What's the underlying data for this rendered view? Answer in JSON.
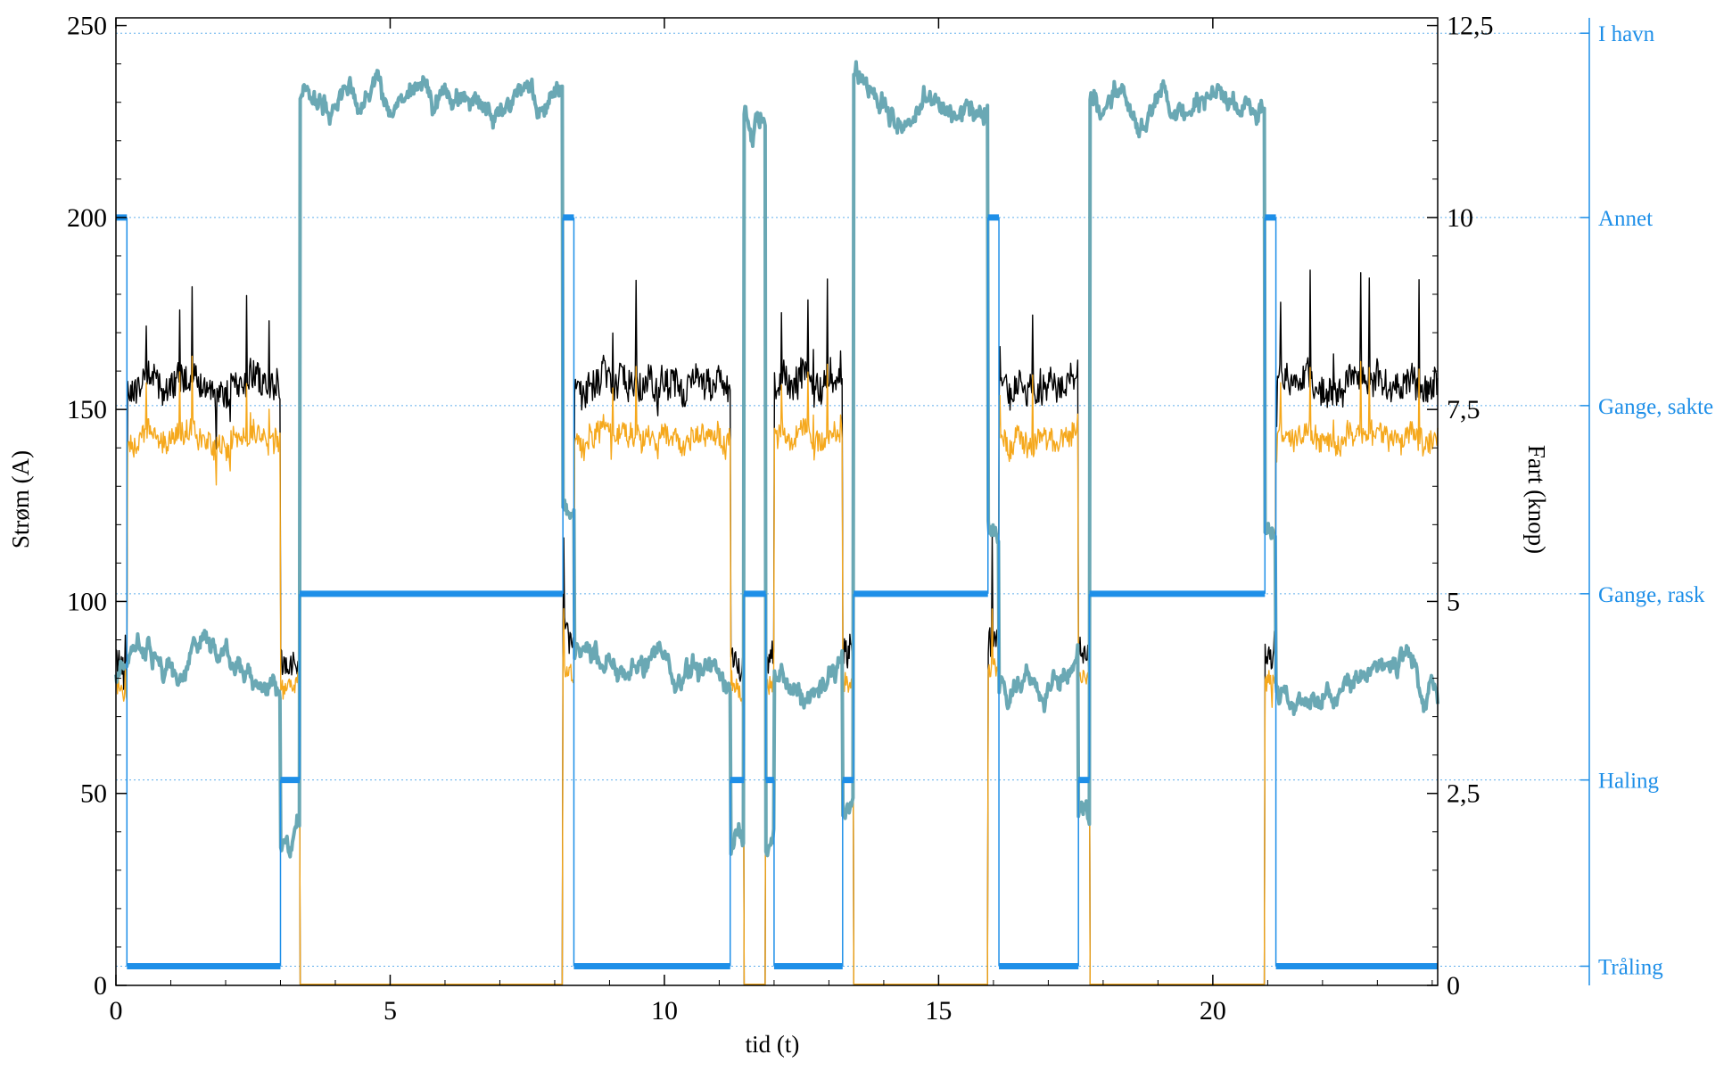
{
  "chart_data": {
    "type": "line",
    "xlabel": "tid (t)",
    "ylabel_left": "Strøm (A)",
    "ylabel_right": "Fart (knop)",
    "xlim": [
      0,
      24.1
    ],
    "ylim_left": [
      0,
      252
    ],
    "ylim_right": [
      0,
      12.6
    ],
    "x_ticks": [
      "0",
      "5",
      "10",
      "15",
      "20"
    ],
    "x_tick_values": [
      0,
      5,
      10,
      15,
      20
    ],
    "y_left_ticks": [
      "0",
      "50",
      "100",
      "150",
      "200",
      "250"
    ],
    "y_left_tick_values": [
      0,
      50,
      100,
      150,
      200,
      250
    ],
    "y_right_ticks": [
      "0",
      "2,5",
      "5",
      "7,5",
      "10",
      "12,5"
    ],
    "y_right_tick_values": [
      0,
      2.5,
      5,
      7.5,
      10,
      12.5
    ],
    "status_levels": [
      "Tråling",
      "Haling",
      "Gange, rask",
      "Gange, sakte",
      "Annet",
      "I havn"
    ],
    "status_level_currents": [
      5,
      53.5,
      102,
      151,
      200,
      248
    ],
    "grid": "dotted horizontal at status levels",
    "colors": {
      "current_black": "#000000",
      "current_orange": "#f5a81c",
      "current_red": "#e31a1c",
      "speed": "#6aa8b4",
      "status": "#1e8fe8",
      "grid": "#3a9ce8"
    },
    "segments": [
      {
        "x0": 0,
        "x1": 0.2,
        "mode": "harbor"
      },
      {
        "x0": 0.2,
        "x1": 3.0,
        "mode": "trawl"
      },
      {
        "x0": 3.0,
        "x1": 3.35,
        "mode": "haul"
      },
      {
        "x0": 3.35,
        "x1": 8.15,
        "mode": "steam"
      },
      {
        "x0": 8.15,
        "x1": 8.35,
        "mode": "other"
      },
      {
        "x0": 8.35,
        "x1": 11.2,
        "mode": "trawl"
      },
      {
        "x0": 11.2,
        "x1": 11.45,
        "mode": "haul"
      },
      {
        "x0": 11.45,
        "x1": 11.85,
        "mode": "steam"
      },
      {
        "x0": 11.85,
        "x1": 12.0,
        "mode": "haul"
      },
      {
        "x0": 12.0,
        "x1": 13.25,
        "mode": "trawl"
      },
      {
        "x0": 13.25,
        "x1": 13.45,
        "mode": "haul"
      },
      {
        "x0": 13.45,
        "x1": 15.9,
        "mode": "steam"
      },
      {
        "x0": 15.9,
        "x1": 16.1,
        "mode": "other"
      },
      {
        "x0": 16.1,
        "x1": 17.55,
        "mode": "trawl"
      },
      {
        "x0": 17.55,
        "x1": 17.75,
        "mode": "haul"
      },
      {
        "x0": 17.75,
        "x1": 20.95,
        "mode": "steam"
      },
      {
        "x0": 20.95,
        "x1": 21.15,
        "mode": "other"
      },
      {
        "x0": 21.15,
        "x1": 24.1,
        "mode": "trawl"
      }
    ],
    "mode_values": {
      "trawl": {
        "black_current": 157,
        "orange_current": 143,
        "speed_knots": 4.1,
        "status": "Tråling"
      },
      "haul": {
        "black_current": 85,
        "orange_current": 78,
        "speed_knots": 2.0,
        "status": "Haling"
      },
      "steam": {
        "black_current": 0,
        "orange_current": 0,
        "speed_knots": 11.5,
        "status": "Gange, rask"
      },
      "other": {
        "black_current": 90,
        "orange_current": 82,
        "speed_knots": 6.0,
        "status": "Annet"
      },
      "harbor": {
        "black_current": 84,
        "orange_current": 78,
        "speed_knots": 4.0,
        "status": "Annet"
      }
    },
    "series": [
      {
        "key": "black_current",
        "axis": "left",
        "color": "#000000",
        "width": 1.4
      },
      {
        "key": "orange_current",
        "axis": "left",
        "color": "#f5a81c",
        "width": 1.4
      },
      {
        "key": "speed_knots",
        "axis": "right",
        "color": "#6aa8b4",
        "width": 4
      }
    ]
  }
}
